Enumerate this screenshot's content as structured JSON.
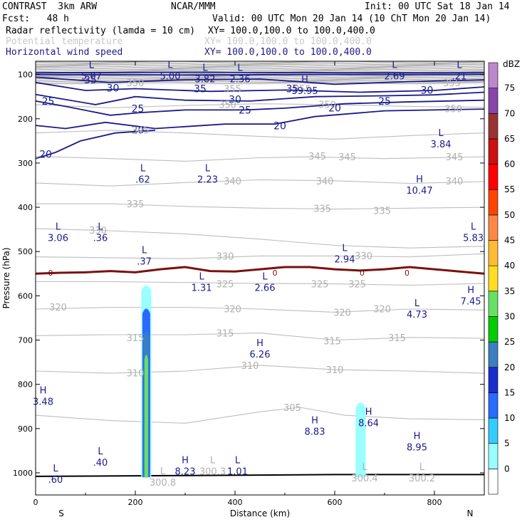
{
  "header": {
    "model": "CONTRAST  3km ARW",
    "org": "NCAR/MMM",
    "init": "Init: 00 UTC Sat 18 Jan 14",
    "fcst": "Fcst:   48 h",
    "valid": "Valid: 00 UTC Mon 20 Jan 14 (10 ChT Mon 20 Jan 14)",
    "fields": [
      {
        "name": "Radar reflectivity (lamda = 10 cm)",
        "xy": "XY= 100.0,100.0 to 100.0,400.0",
        "color": "#000000"
      },
      {
        "name": "Potential temperature",
        "xy": "XY= 100.0,100.0 to 100.0,400.0",
        "color": "#c8c8c8"
      },
      {
        "name": "Horizontal wind speed",
        "xy": "XY= 100.0,100.0 to 100.0,400.0",
        "color": "#1a1a8c"
      }
    ]
  },
  "chart_data": {
    "type": "contour-cross-section",
    "xlabel": "Distance (km)",
    "ylabel": "Pressure (hPa)",
    "xlim": [
      0,
      900
    ],
    "ylim": [
      1050,
      70
    ],
    "x_ticks": [
      0,
      200,
      400,
      600,
      800
    ],
    "y_ticks": [
      100,
      200,
      300,
      400,
      500,
      600,
      700,
      800,
      900,
      1000
    ],
    "x_end_labels": {
      "left": "S",
      "right": "N"
    },
    "colorbar": {
      "unit": "dBZ",
      "levels": [
        0,
        5,
        10,
        15,
        20,
        25,
        30,
        35,
        40,
        45,
        50,
        55,
        60,
        65,
        70,
        75
      ],
      "colors": [
        "#ffffff",
        "#99ffff",
        "#33ccff",
        "#2a6aff",
        "#1a2ecc",
        "#3a7fbf",
        "#00cc00",
        "#66e066",
        "#ffdd22",
        "#ffbb33",
        "#ff8844",
        "#ff4400",
        "#ff0000",
        "#cc1111",
        "#993333",
        "#8844aa",
        "#bb88cc"
      ]
    },
    "wind_contour_labels": [
      {
        "text": "35",
        "x": 110,
        "p": 112
      },
      {
        "text": "30",
        "x": 155,
        "p": 130
      },
      {
        "text": "35",
        "x": 330,
        "p": 132
      },
      {
        "text": "35",
        "x": 515,
        "p": 132
      },
      {
        "text": "30",
        "x": 785,
        "p": 135
      },
      {
        "text": "25",
        "x": 25,
        "p": 160
      },
      {
        "text": "25",
        "x": 205,
        "p": 177
      },
      {
        "text": "30",
        "x": 400,
        "p": 156
      },
      {
        "text": "25",
        "x": 700,
        "p": 160
      },
      {
        "text": "25",
        "x": 420,
        "p": 180
      },
      {
        "text": "20",
        "x": 600,
        "p": 175
      },
      {
        "text": "20",
        "x": 205,
        "p": 225
      },
      {
        "text": "20",
        "x": 490,
        "p": 216
      },
      {
        "text": "20",
        "x": 20,
        "p": 280
      }
    ],
    "theta_contour_labels": [
      {
        "text": "350",
        "x": 200,
        "p": 118
      },
      {
        "text": "355",
        "x": 395,
        "p": 132
      },
      {
        "text": "355",
        "x": 535,
        "p": 132
      },
      {
        "text": "355",
        "x": 835,
        "p": 118
      },
      {
        "text": "350",
        "x": 385,
        "p": 167
      },
      {
        "text": "350",
        "x": 585,
        "p": 167
      },
      {
        "text": "350",
        "x": 838,
        "p": 177
      },
      {
        "text": "345",
        "x": 210,
        "p": 225
      },
      {
        "text": "345",
        "x": 565,
        "p": 284
      },
      {
        "text": "345",
        "x": 625,
        "p": 286
      },
      {
        "text": "345",
        "x": 840,
        "p": 286
      },
      {
        "text": "340",
        "x": 395,
        "p": 340
      },
      {
        "text": "340",
        "x": 580,
        "p": 340
      },
      {
        "text": "340",
        "x": 840,
        "p": 340
      },
      {
        "text": "335",
        "x": 200,
        "p": 392
      },
      {
        "text": "335",
        "x": 575,
        "p": 402
      },
      {
        "text": "335",
        "x": 695,
        "p": 407
      },
      {
        "text": "330",
        "x": 125,
        "p": 451
      },
      {
        "text": "330",
        "x": 380,
        "p": 510
      },
      {
        "text": "330",
        "x": 658,
        "p": 509
      },
      {
        "text": "325",
        "x": 380,
        "p": 573
      },
      {
        "text": "325",
        "x": 570,
        "p": 573
      },
      {
        "text": "325",
        "x": 645,
        "p": 573
      },
      {
        "text": "320",
        "x": 45,
        "p": 625
      },
      {
        "text": "320",
        "x": 395,
        "p": 629
      },
      {
        "text": "320",
        "x": 615,
        "p": 637
      },
      {
        "text": "320",
        "x": 695,
        "p": 629
      },
      {
        "text": "315",
        "x": 200,
        "p": 694
      },
      {
        "text": "315",
        "x": 380,
        "p": 684
      },
      {
        "text": "315",
        "x": 595,
        "p": 702
      },
      {
        "text": "315",
        "x": 725,
        "p": 694
      },
      {
        "text": "310",
        "x": 200,
        "p": 774
      },
      {
        "text": "310",
        "x": 430,
        "p": 757
      },
      {
        "text": "310",
        "x": 600,
        "p": 767
      },
      {
        "text": "305",
        "x": 515,
        "p": 852
      }
    ],
    "zero_contour": {
      "label": "0",
      "points": [
        [
          0,
          550
        ],
        [
          50,
          548
        ],
        [
          100,
          547
        ],
        [
          150,
          544
        ],
        [
          200,
          547
        ],
        [
          250,
          540
        ],
        [
          300,
          535
        ],
        [
          350,
          544
        ],
        [
          400,
          545
        ],
        [
          450,
          540
        ],
        [
          500,
          535
        ],
        [
          550,
          535
        ],
        [
          600,
          540
        ],
        [
          650,
          543
        ],
        [
          700,
          540
        ],
        [
          750,
          535
        ],
        [
          800,
          540
        ],
        [
          850,
          545
        ],
        [
          900,
          550
        ]
      ]
    },
    "wind_extrema": [
      {
        "type": "L",
        "value": "5.07",
        "x": 112,
        "p": 92
      },
      {
        "type": "L",
        "value": "5.00",
        "x": 270,
        "p": 92
      },
      {
        "type": "L",
        "value": "3.82",
        "x": 340,
        "p": 98
      },
      {
        "type": "L",
        "value": "2.36",
        "x": 410,
        "p": 98
      },
      {
        "type": "L",
        "value": "2.69",
        "x": 720,
        "p": 92
      },
      {
        "type": "L",
        "value": ".21",
        "x": 850,
        "p": 92
      },
      {
        "type": "H",
        "value": "39.95",
        "x": 540,
        "p": 125
      },
      {
        "type": "L",
        "value": "3.84",
        "x": 813,
        "p": 245
      },
      {
        "type": "L",
        "value": ".62",
        "x": 215,
        "p": 325
      },
      {
        "type": "L",
        "value": "2.23",
        "x": 345,
        "p": 325
      },
      {
        "type": "H",
        "value": "10.47",
        "x": 770,
        "p": 350
      },
      {
        "type": "L",
        "value": "3.06",
        "x": 45,
        "p": 457
      },
      {
        "type": "L",
        "value": ".36",
        "x": 130,
        "p": 457
      },
      {
        "type": "L",
        "value": "5.83",
        "x": 878,
        "p": 457
      },
      {
        "type": "L",
        "value": ".37",
        "x": 218,
        "p": 510
      },
      {
        "type": "L",
        "value": "2.94",
        "x": 620,
        "p": 505
      },
      {
        "type": "L",
        "value": "1.31",
        "x": 333,
        "p": 570
      },
      {
        "type": "L",
        "value": "2.66",
        "x": 460,
        "p": 570
      },
      {
        "type": "H",
        "value": "7.45",
        "x": 873,
        "p": 600
      },
      {
        "type": "L",
        "value": "4.73",
        "x": 765,
        "p": 630
      },
      {
        "type": "H",
        "value": "6.26",
        "x": 450,
        "p": 720
      },
      {
        "type": "H",
        "value": "3.48",
        "x": 15,
        "p": 827
      },
      {
        "type": "H",
        "value": "8.83",
        "x": 560,
        "p": 895
      },
      {
        "type": "H",
        "value": "8.64",
        "x": 668,
        "p": 875
      },
      {
        "type": "H",
        "value": "8.95",
        "x": 765,
        "p": 930
      },
      {
        "type": "L",
        "value": ".40",
        "x": 130,
        "p": 965
      },
      {
        "type": "H",
        "value": "8.23",
        "x": 300,
        "p": 985
      },
      {
        "type": "L",
        "value": "1.01",
        "x": 405,
        "p": 985
      },
      {
        "type": "L",
        "value": ".60",
        "x": 40,
        "p": 1003
      }
    ],
    "theta_extrema": [
      {
        "type": "L",
        "value": "300.3",
        "x": 355,
        "p": 985
      },
      {
        "type": "L",
        "value": "300.8",
        "x": 255,
        "p": 1010
      },
      {
        "type": "L",
        "value": "300.4",
        "x": 660,
        "p": 1000
      },
      {
        "type": "L",
        "value": "300.2",
        "x": 775,
        "p": 1000
      }
    ],
    "reflectivity_cells": [
      {
        "x": 222,
        "p_top": 575,
        "p_bottom": 1010,
        "max_dbz": 35
      },
      {
        "x": 652,
        "p_top": 840,
        "p_bottom": 1010,
        "max_dbz": 10
      }
    ]
  }
}
